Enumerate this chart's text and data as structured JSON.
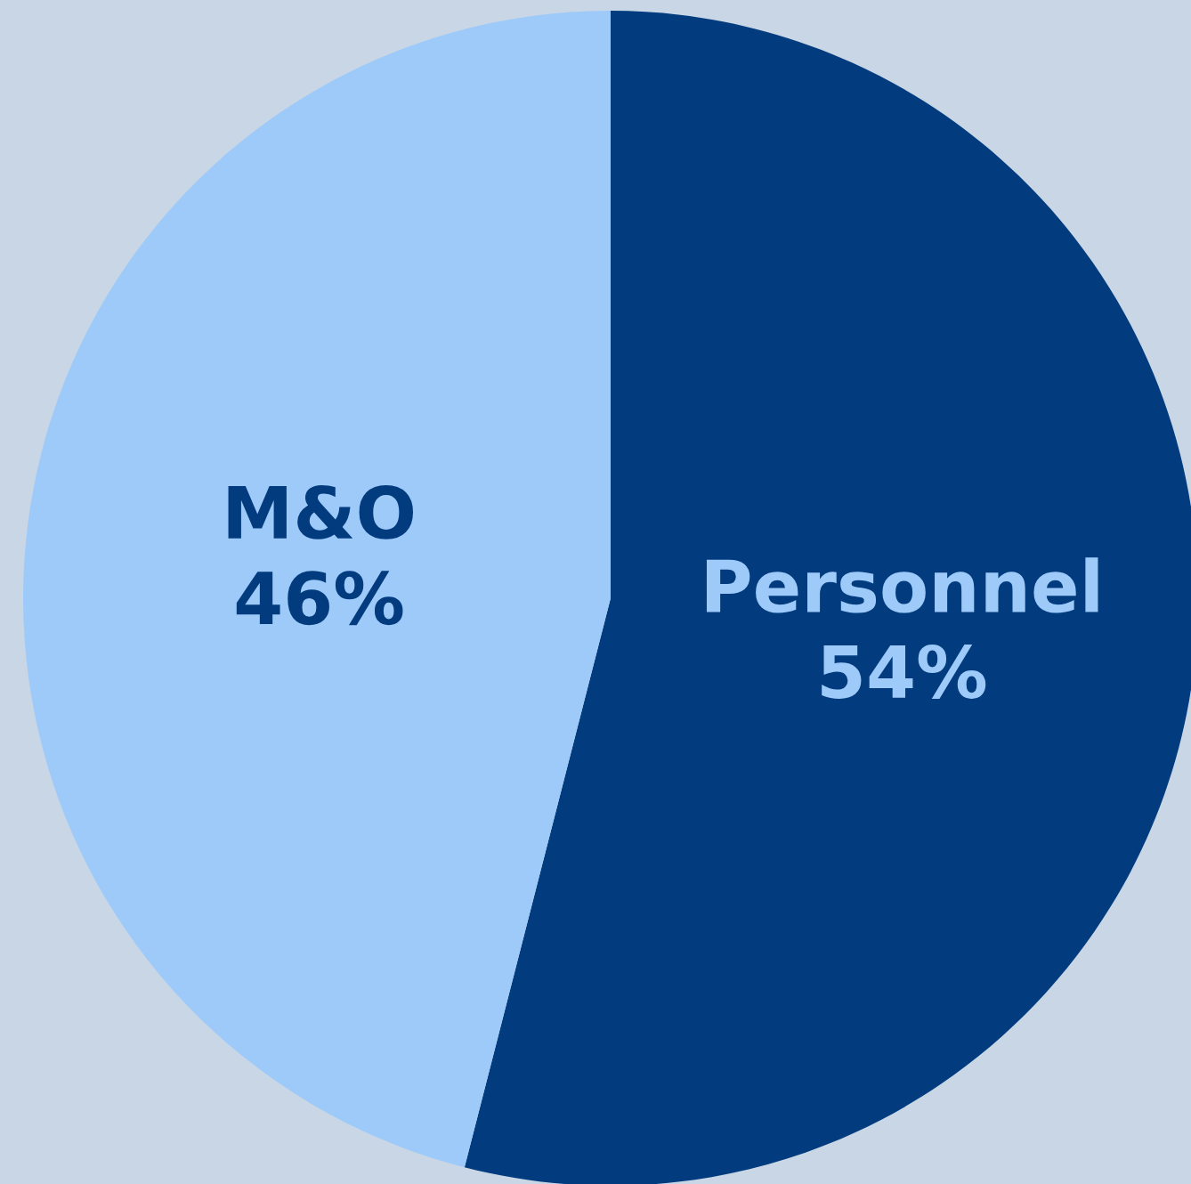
{
  "chart_data": {
    "type": "pie",
    "categories": [
      "Personnel",
      "M&O"
    ],
    "values": [
      54,
      46
    ],
    "colors": [
      "#023c7e",
      "#9ecafa"
    ],
    "value_labels": [
      "54%",
      "46%"
    ]
  }
}
